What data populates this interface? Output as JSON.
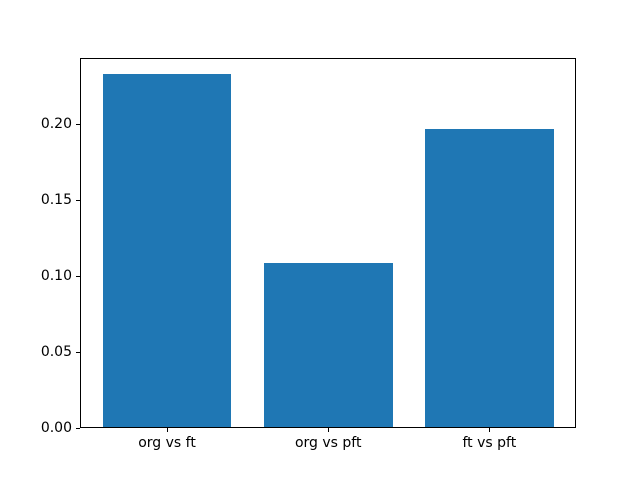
{
  "chart_data": {
    "type": "bar",
    "title": "",
    "xlabel": "",
    "ylabel": "",
    "categories": [
      "org vs ft",
      "org vs pft",
      "ft vs pft"
    ],
    "values": [
      0.232,
      0.108,
      0.196
    ],
    "bar_color": "#1f77b4",
    "background_color": "#ffffff",
    "spine_color": "#000000",
    "grid": false,
    "legend": null,
    "ylim": [
      0,
      0.2436
    ],
    "xlim": [
      -0.54,
      2.54
    ],
    "bar_width": 0.8,
    "yticks": [
      {
        "value": 0.0,
        "label": "0.00"
      },
      {
        "value": 0.05,
        "label": "0.05"
      },
      {
        "value": 0.1,
        "label": "0.10"
      },
      {
        "value": 0.15,
        "label": "0.15"
      },
      {
        "value": 0.2,
        "label": "0.20"
      }
    ]
  }
}
